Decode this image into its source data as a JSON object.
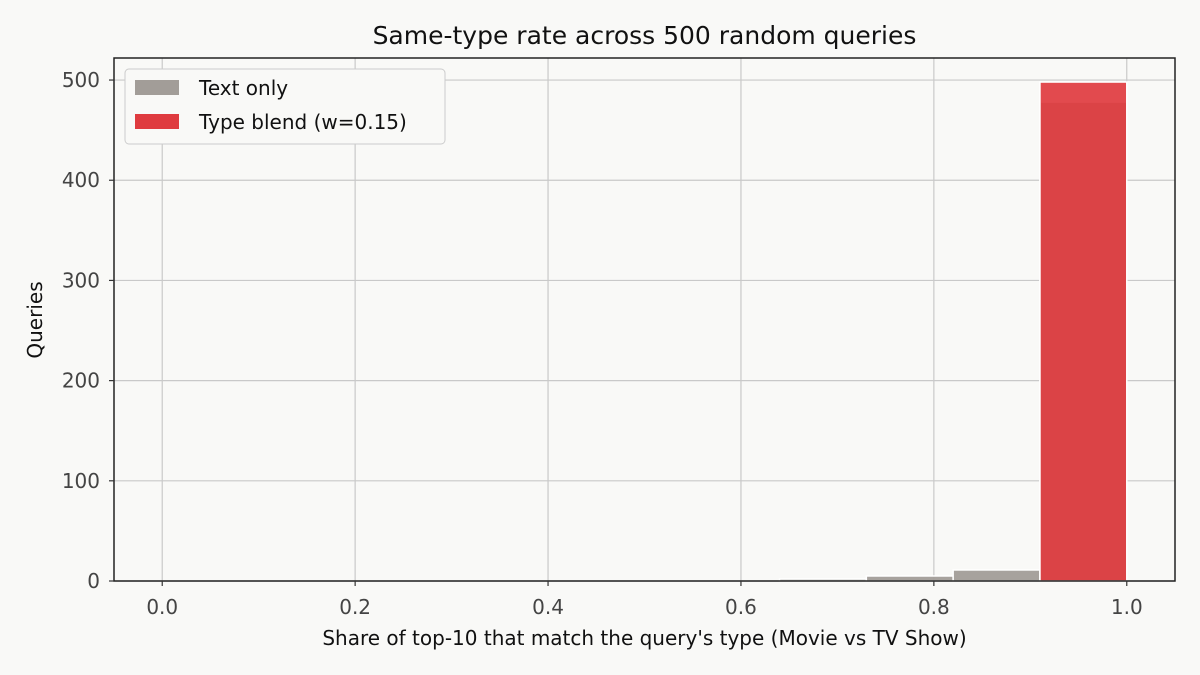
{
  "chart_data": {
    "type": "bar",
    "title": "Same-type rate across 500 random queries",
    "xlabel": "Share of top-10 that match the query's type (Movie vs TV Show)",
    "ylabel": "Queries",
    "xlim": [
      -0.05,
      1.05
    ],
    "ylim": [
      0,
      522
    ],
    "xticks": [
      "0.0",
      "0.2",
      "0.4",
      "0.6",
      "0.8",
      "1.0"
    ],
    "xtick_values": [
      0.0,
      0.2,
      0.4,
      0.6,
      0.8,
      1.0
    ],
    "yticks": [
      "0",
      "100",
      "200",
      "300",
      "400",
      "500"
    ],
    "ytick_values": [
      0,
      100,
      200,
      300,
      400,
      500
    ],
    "grid": true,
    "legend_position": "top-left",
    "series": [
      {
        "name": "Text only",
        "color": "#a29d98",
        "bins": [
          {
            "x0": 0.64,
            "x1": 0.73,
            "value": 2
          },
          {
            "x0": 0.73,
            "x1": 0.82,
            "value": 5
          },
          {
            "x0": 0.82,
            "x1": 0.91,
            "value": 11
          },
          {
            "x0": 0.91,
            "x1": 1.0,
            "value": 478
          }
        ]
      },
      {
        "name": "Type blend (w=0.15)",
        "color": "#df3b3f",
        "bins": [
          {
            "x0": 0.91,
            "x1": 1.0,
            "value": 498
          }
        ]
      }
    ]
  }
}
